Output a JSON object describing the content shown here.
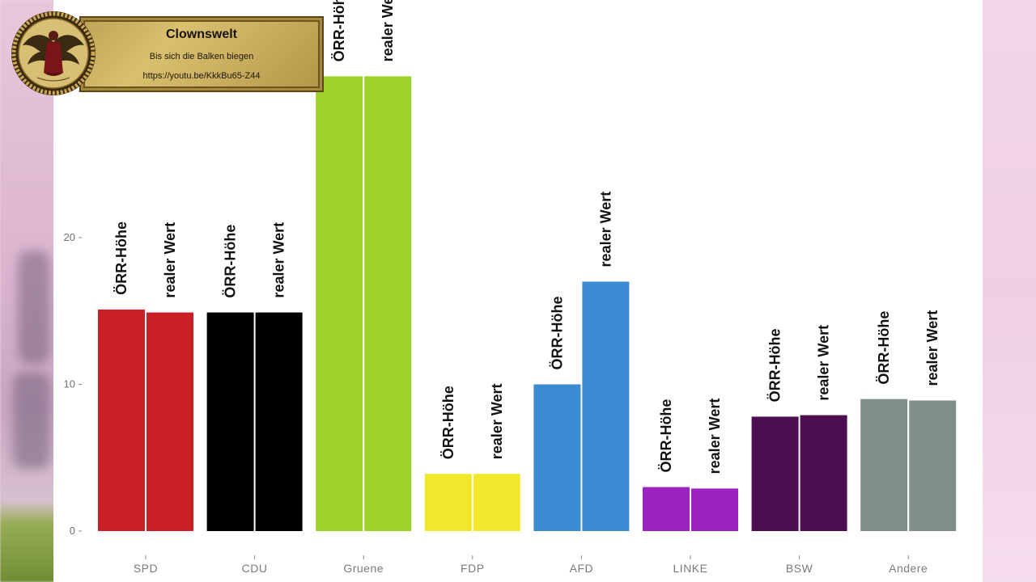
{
  "watermark": {
    "title": "Clownswelt",
    "subtitle": "Bis sich die Balken biegen",
    "url": "https://youtu.be/KkkBu65-Z44",
    "logo_icon": "eris-winged-goddess-logo"
  },
  "chart_data": {
    "type": "bar",
    "categories": [
      "SPD",
      "CDU",
      "Gruene",
      "FDP",
      "AFD",
      "LINKE",
      "BSW",
      "Andere"
    ],
    "category_colors": [
      "#c92028",
      "#000000",
      "#9dd22d",
      "#f2e72a",
      "#3a8bd2",
      "#9b22bf",
      "#4e0f52",
      "#7e8f8c"
    ],
    "series": [
      {
        "values": [
          15.1,
          14.9,
          31.0,
          3.9,
          10.0,
          3.0,
          7.8,
          9.0
        ]
      },
      {
        "values": [
          14.9,
          14.9,
          31.0,
          3.9,
          17.0,
          2.9,
          7.9,
          8.9
        ]
      }
    ],
    "bar_labels": [
      "ÖRR-Höhe",
      "realer Wert"
    ],
    "yticks": [
      0,
      10,
      20,
      30
    ],
    "ytick_labels": [
      "0",
      "10",
      "20",
      ""
    ],
    "ylim": [
      0,
      30
    ],
    "title": "",
    "xlabel": "",
    "ylabel": "",
    "legend": "none",
    "grid": false
  }
}
